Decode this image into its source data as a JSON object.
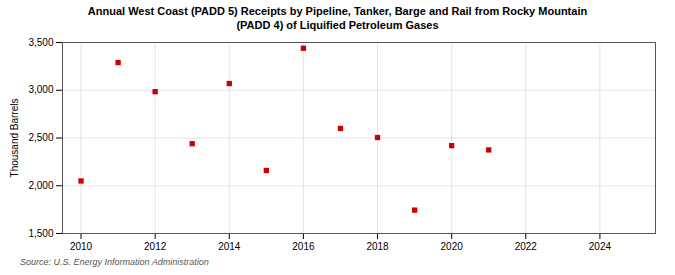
{
  "chart_data": {
    "type": "scatter",
    "title": "Annual West Coast (PADD 5) Receipts by Pipeline, Tanker, Barge and Rail from Rocky Mountain",
    "subtitle": "(PADD 4) of Liquified Petroleum Gases",
    "annotations": [
      "Source: U.S. Energy Information Administration"
    ],
    "ylabel": "Thousand Barrels",
    "x": [
      2010,
      2011,
      2012,
      2013,
      2014,
      2015,
      2016,
      2017,
      2018,
      2019,
      2020,
      2021
    ],
    "values": [
      2050,
      3290,
      2985,
      2440,
      3070,
      2160,
      3440,
      2600,
      2505,
      1745,
      2420,
      2375
    ],
    "color": "#cc0000",
    "marker": "square",
    "xlim": [
      2009.5,
      2025.5
    ],
    "ylim": [
      1500,
      3500
    ],
    "xticks": [
      2010,
      2012,
      2014,
      2016,
      2018,
      2020,
      2022,
      2024
    ],
    "yticks": [
      {
        "value": 1500,
        "label": "1,500"
      },
      {
        "value": 2000,
        "label": "2,000"
      },
      {
        "value": 2500,
        "label": "2,500"
      },
      {
        "value": 3000,
        "label": "3,000"
      },
      {
        "value": 3500,
        "label": "3,500"
      }
    ],
    "grid": true
  }
}
